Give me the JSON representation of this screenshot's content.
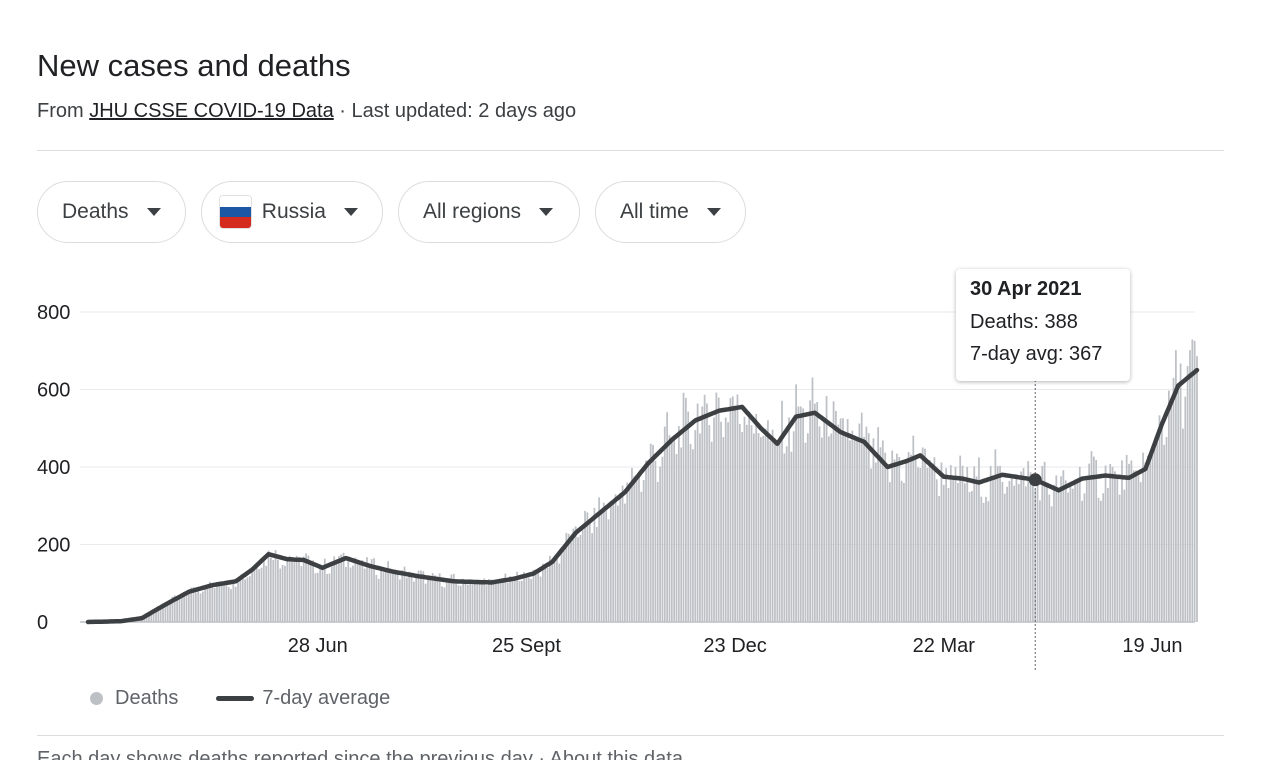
{
  "header": {
    "title": "New cases and deaths",
    "source_prefix": "From ",
    "source_link": "JHU CSSE COVID-19 Data",
    "updated": " · Last updated: 2 days ago"
  },
  "filters": {
    "metric": "Deaths",
    "country": "Russia",
    "region": "All regions",
    "range": "All time"
  },
  "colors": {
    "bars": "#bdc1c6",
    "avg_line": "#3c4043",
    "grid": "#e8eaed",
    "flag_white": "#ffffff",
    "flag_blue": "#1c57a5",
    "flag_red": "#d52b1e"
  },
  "tooltip": {
    "date": "30 Apr 2021",
    "deaths_line": "Deaths: 388",
    "avg_line": "7-day avg: 367"
  },
  "legend": {
    "bars_label": "Deaths",
    "line_label": "7-day average"
  },
  "footer_partial": "Each day shows deaths reported since the previous day · About this data",
  "chart_data": {
    "type": "bar",
    "start_date": "2020-03-22",
    "end_date": "2021-07-08",
    "ylim": [
      0,
      800
    ],
    "yticks": [
      0,
      200,
      400,
      600,
      800
    ],
    "xticks": [
      {
        "date": "2020-06-28",
        "label": "28 Jun"
      },
      {
        "date": "2020-09-25",
        "label": "25 Sept"
      },
      {
        "date": "2020-12-23",
        "label": "23 Dec"
      },
      {
        "date": "2021-03-22",
        "label": "22 Mar"
      },
      {
        "date": "2021-06-19",
        "label": "19 Jun"
      }
    ],
    "grid": true,
    "legend_position": "bottom-left",
    "series": [
      {
        "name": "Deaths",
        "type": "bar",
        "note": "daily bars, approx. 7-day average with day-to-day variation",
        "anchors": [
          [
            "2020-03-22",
            0
          ],
          [
            "2020-04-05",
            2
          ],
          [
            "2020-04-14",
            10
          ],
          [
            "2020-04-24",
            45
          ],
          [
            "2020-05-04",
            78
          ],
          [
            "2020-05-14",
            95
          ],
          [
            "2020-05-24",
            105
          ],
          [
            "2020-05-31",
            135
          ],
          [
            "2020-06-07",
            175
          ],
          [
            "2020-06-15",
            162
          ],
          [
            "2020-06-22",
            160
          ],
          [
            "2020-06-30",
            140
          ],
          [
            "2020-07-10",
            165
          ],
          [
            "2020-07-20",
            145
          ],
          [
            "2020-07-30",
            130
          ],
          [
            "2020-08-10",
            118
          ],
          [
            "2020-08-25",
            105
          ],
          [
            "2020-09-10",
            102
          ],
          [
            "2020-09-20",
            112
          ],
          [
            "2020-09-28",
            125
          ],
          [
            "2020-10-06",
            155
          ],
          [
            "2020-10-16",
            230
          ],
          [
            "2020-10-28",
            290
          ],
          [
            "2020-11-06",
            335
          ],
          [
            "2020-11-16",
            410
          ],
          [
            "2020-11-26",
            470
          ],
          [
            "2020-12-06",
            520
          ],
          [
            "2020-12-16",
            545
          ],
          [
            "2020-12-26",
            555
          ],
          [
            "2021-01-03",
            500
          ],
          [
            "2021-01-10",
            460
          ],
          [
            "2021-01-18",
            530
          ],
          [
            "2021-01-26",
            540
          ],
          [
            "2021-02-06",
            490
          ],
          [
            "2021-02-16",
            465
          ],
          [
            "2021-02-26",
            400
          ],
          [
            "2021-03-06",
            415
          ],
          [
            "2021-03-12",
            430
          ],
          [
            "2021-03-22",
            375
          ],
          [
            "2021-03-30",
            370
          ],
          [
            "2021-04-06",
            360
          ],
          [
            "2021-04-16",
            380
          ],
          [
            "2021-04-30",
            367
          ],
          [
            "2021-05-10",
            340
          ],
          [
            "2021-05-20",
            370
          ],
          [
            "2021-05-30",
            378
          ],
          [
            "2021-06-09",
            372
          ],
          [
            "2021-06-16",
            395
          ],
          [
            "2021-06-23",
            510
          ],
          [
            "2021-06-30",
            610
          ],
          [
            "2021-07-08",
            650
          ]
        ]
      },
      {
        "name": "7-day average",
        "type": "line",
        "anchors": [
          [
            "2020-03-22",
            0
          ],
          [
            "2020-04-05",
            2
          ],
          [
            "2020-04-14",
            10
          ],
          [
            "2020-04-24",
            45
          ],
          [
            "2020-05-04",
            78
          ],
          [
            "2020-05-14",
            95
          ],
          [
            "2020-05-24",
            105
          ],
          [
            "2020-05-31",
            135
          ],
          [
            "2020-06-07",
            175
          ],
          [
            "2020-06-15",
            162
          ],
          [
            "2020-06-22",
            160
          ],
          [
            "2020-06-30",
            140
          ],
          [
            "2020-07-10",
            165
          ],
          [
            "2020-07-20",
            145
          ],
          [
            "2020-07-30",
            130
          ],
          [
            "2020-08-10",
            118
          ],
          [
            "2020-08-25",
            105
          ],
          [
            "2020-09-10",
            102
          ],
          [
            "2020-09-20",
            112
          ],
          [
            "2020-09-28",
            125
          ],
          [
            "2020-10-06",
            155
          ],
          [
            "2020-10-16",
            230
          ],
          [
            "2020-10-28",
            290
          ],
          [
            "2020-11-06",
            335
          ],
          [
            "2020-11-16",
            410
          ],
          [
            "2020-11-26",
            470
          ],
          [
            "2020-12-06",
            520
          ],
          [
            "2020-12-16",
            545
          ],
          [
            "2020-12-26",
            555
          ],
          [
            "2021-01-03",
            500
          ],
          [
            "2021-01-10",
            460
          ],
          [
            "2021-01-18",
            530
          ],
          [
            "2021-01-26",
            540
          ],
          [
            "2021-02-06",
            490
          ],
          [
            "2021-02-16",
            465
          ],
          [
            "2021-02-26",
            400
          ],
          [
            "2021-03-06",
            415
          ],
          [
            "2021-03-12",
            430
          ],
          [
            "2021-03-22",
            375
          ],
          [
            "2021-03-30",
            370
          ],
          [
            "2021-04-06",
            360
          ],
          [
            "2021-04-16",
            380
          ],
          [
            "2021-04-30",
            367
          ],
          [
            "2021-05-10",
            340
          ],
          [
            "2021-05-20",
            370
          ],
          [
            "2021-05-30",
            378
          ],
          [
            "2021-06-09",
            372
          ],
          [
            "2021-06-16",
            395
          ],
          [
            "2021-06-23",
            510
          ],
          [
            "2021-06-30",
            610
          ],
          [
            "2021-07-08",
            650
          ]
        ]
      }
    ],
    "highlight": {
      "date": "2021-04-30",
      "deaths": 388,
      "avg": 367
    }
  }
}
